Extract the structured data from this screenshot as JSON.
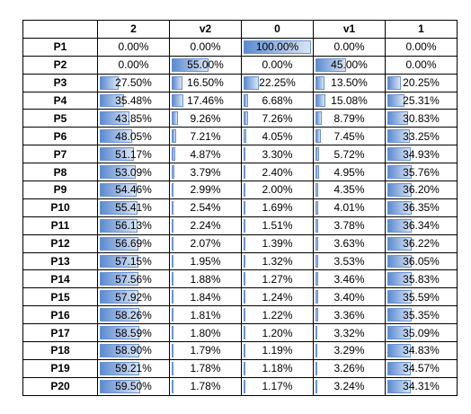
{
  "table": {
    "columns": [
      "2",
      "v2",
      "0",
      "v1",
      "1"
    ],
    "rows": [
      [
        "P1",
        "0.00%",
        "0.00%",
        "100.00%",
        "0.00%",
        "0.00%"
      ],
      [
        "P2",
        "0.00%",
        "55.00%",
        "0.00%",
        "45.00%",
        "0.00%"
      ],
      [
        "P3",
        "27.50%",
        "16.50%",
        "22.25%",
        "13.50%",
        "20.25%"
      ],
      [
        "P4",
        "35.48%",
        "17.46%",
        "6.68%",
        "15.08%",
        "25.31%"
      ],
      [
        "P5",
        "43.85%",
        "9.26%",
        "7.26%",
        "8.79%",
        "30.83%"
      ],
      [
        "P6",
        "48.05%",
        "7.21%",
        "4.05%",
        "7.45%",
        "33.25%"
      ],
      [
        "P7",
        "51.17%",
        "4.87%",
        "3.30%",
        "5.72%",
        "34.93%"
      ],
      [
        "P8",
        "53.09%",
        "3.79%",
        "2.40%",
        "4.95%",
        "35.76%"
      ],
      [
        "P9",
        "54.46%",
        "2.99%",
        "2.00%",
        "4.35%",
        "36.20%"
      ],
      [
        "P10",
        "55.41%",
        "2.54%",
        "1.69%",
        "4.01%",
        "36.35%"
      ],
      [
        "P11",
        "56.13%",
        "2.24%",
        "1.51%",
        "3.78%",
        "36.34%"
      ],
      [
        "P12",
        "56.69%",
        "2.07%",
        "1.39%",
        "3.63%",
        "36.22%"
      ],
      [
        "P13",
        "57.15%",
        "1.95%",
        "1.32%",
        "3.53%",
        "36.05%"
      ],
      [
        "P14",
        "57.56%",
        "1.88%",
        "1.27%",
        "3.46%",
        "35.83%"
      ],
      [
        "P15",
        "57.92%",
        "1.84%",
        "1.24%",
        "3.40%",
        "35.59%"
      ],
      [
        "P16",
        "58.26%",
        "1.81%",
        "1.22%",
        "3.36%",
        "35.35%"
      ],
      [
        "P17",
        "58.59%",
        "1.80%",
        "1.20%",
        "3.32%",
        "35.09%"
      ],
      [
        "P18",
        "58.90%",
        "1.79%",
        "1.19%",
        "3.29%",
        "34.83%"
      ],
      [
        "P19",
        "59.21%",
        "1.78%",
        "1.18%",
        "3.26%",
        "34.57%"
      ],
      [
        "P20",
        "59.50%",
        "1.78%",
        "1.17%",
        "3.24%",
        "34.31%"
      ]
    ]
  }
}
